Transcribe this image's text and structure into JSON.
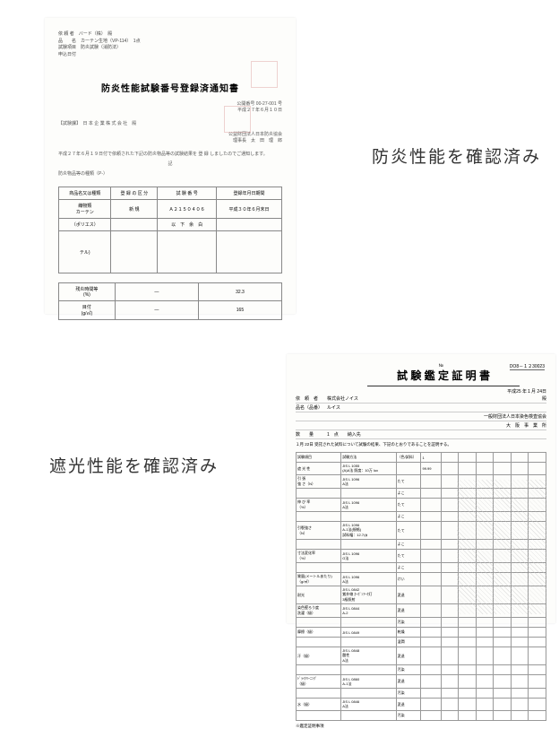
{
  "label1": "防炎性能を確認済み",
  "label2": "遮光性能を確認済み",
  "doc1": {
    "header_lines": [
      "依 頼 者　バード（株）　殿",
      "品　　名　カーテン生地（VP-114）　1点",
      "試験項目　防炎試験（消防法）",
      "申込日付　"
    ],
    "title": "防炎性能試験番号登録済通知書",
    "subtitle1": "公開番号 00-27-001 号",
    "subtitle2": "平成２７年６月１０日",
    "recipient": "日 本 企 業 株 式 会 社　殿",
    "recipient_label": "【試験課】",
    "issuer1": "公益財団法人日本防炎協会",
    "issuer2": "理事長　太　田　理　郎",
    "body_text": "平成２７年６月１９日付で依頼された下記の防炎物品等の試験結果を 登 録 しましたのでご通知します。",
    "table_section": "防炎物品等の種類（P-）",
    "table1_headers": [
      "商品名又は種類",
      "登 録 の 区 分",
      "試 験 番 号",
      "登録年月日期間"
    ],
    "table1_rows": [
      [
        "織物類\nカーテン",
        "新 規",
        "Ａ２１５０４０６",
        "平成３０年６月末日"
      ],
      [
        "（ポリエス）",
        "",
        "以　下　余　白",
        ""
      ],
      [
        "テル)",
        "",
        "",
        ""
      ]
    ],
    "table2_rows": [
      [
        "残炎時間等\n(%)",
        "—",
        "32.3"
      ],
      [
        "目付\n(g/㎡)",
        "—",
        "165"
      ]
    ],
    "note": "記"
  },
  "doc2": {
    "title": "試 験 鑑 定 証 明 書",
    "no_label": "№",
    "no": "DO8－１２30023",
    "date": "平成25 年１月 24日",
    "rows": [
      {
        "label": "依　頼　者",
        "value": "株式会社ノイス",
        "suffix": "殿"
      },
      {
        "label": "品名（品番）",
        "value": "ルイス",
        "suffix": ""
      },
      {
        "label": "",
        "value": "",
        "suffix": "一般財団法人日本染色検査協会"
      },
      {
        "label": "",
        "value": "",
        "suffix": "大　阪　事　業　所"
      },
      {
        "label": "数　　量",
        "value": "1　点　　納入先",
        "suffix": ""
      }
    ],
    "body": "１月 22日 受託された試料について試験の結果、下記のとおりであることを証明する。",
    "table_headers": [
      "試験項目",
      "試験方法",
      "（色/試料）",
      "1"
    ],
    "table_rows": [
      [
        "遮 光 性",
        "JIS L 1055\n(A)A法 照度：10万 lux",
        "",
        "99.99"
      ],
      [
        "引 張\n強 さ（N）",
        "JIS L 1096\nA法",
        "たて",
        ""
      ],
      [
        "",
        "",
        "よこ",
        ""
      ],
      [
        "伸 び 率\n（%）",
        "JIS L 1096\nA法",
        "たて",
        ""
      ],
      [
        "",
        "",
        "よこ",
        ""
      ],
      [
        "引裂強さ\n（N）",
        "JIS L 1096\nA-1法(規格)\n試料幅：12.7㎝",
        "たて",
        ""
      ],
      [
        "",
        "",
        "よこ",
        ""
      ],
      [
        "寸法変化率\n（%）",
        "JIS L 1096\nG法",
        "たて",
        ""
      ],
      [
        "",
        "",
        "よこ",
        ""
      ],
      [
        "質量(メートルあたり)\n（g/㎡）",
        "JIS L 1096\nA法",
        "けい",
        ""
      ],
      [
        "耐光",
        "JIS L 0842\n紫外線 ｶｰﾎﾞﾝｱｰｸ灯\n3級照射",
        "変退",
        ""
      ],
      [
        "染色堅ろう度\n洗濯（級）",
        "JIS L 0844\nA-2",
        "変退",
        ""
      ],
      [
        "",
        "",
        "汚染",
        ""
      ],
      [
        "摩擦（級）",
        "JIS L 0849",
        "乾燥",
        ""
      ],
      [
        "",
        "",
        "湿潤",
        ""
      ],
      [
        "汗（級）",
        "JIS L 0848\n酸性\nA法",
        "変退",
        ""
      ],
      [
        "",
        "",
        "汚染",
        ""
      ],
      [
        "ﾄﾞﾗｲｸﾘｰﾆﾝｸﾞ\n（級）",
        "JIS L 0860\nA-1法",
        "変退",
        ""
      ],
      [
        "",
        "",
        "汚染",
        ""
      ],
      [
        "水（級）",
        "JIS L 0846\nA法",
        "変退",
        ""
      ],
      [
        "",
        "",
        "汚染",
        ""
      ]
    ],
    "footer": "※鑑定証明事項"
  }
}
